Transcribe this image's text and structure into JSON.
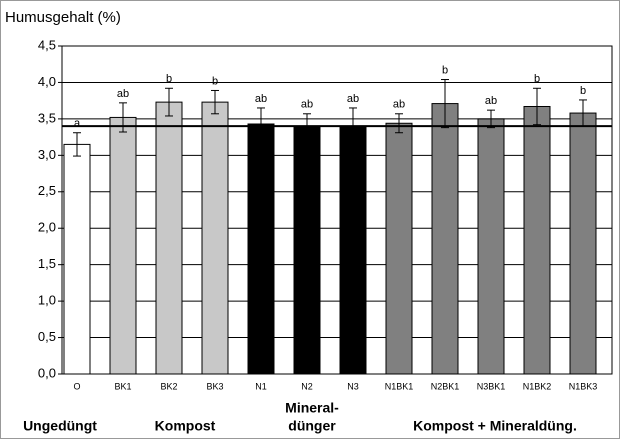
{
  "chart_data": {
    "type": "bar",
    "title": "Humusgehalt (%)",
    "categories": [
      "O",
      "BK1",
      "BK2",
      "BK3",
      "N1",
      "N2",
      "N3",
      "N1BK1",
      "N2BK1",
      "N3BK1",
      "N1BK2",
      "N1BK3"
    ],
    "values": [
      3.15,
      3.52,
      3.73,
      3.73,
      3.43,
      3.4,
      3.4,
      3.44,
      3.71,
      3.5,
      3.67,
      3.58
    ],
    "errors": [
      0.16,
      0.2,
      0.19,
      0.16,
      0.22,
      0.17,
      0.25,
      0.13,
      0.33,
      0.12,
      0.25,
      0.18
    ],
    "value_annotations": [
      "a",
      "ab",
      "b",
      "b",
      "ab",
      "ab",
      "ab",
      "ab",
      "b",
      "ab",
      "b",
      "b"
    ],
    "colors": [
      "#ffffff",
      "#c8c8c8",
      "#c8c8c8",
      "#c8c8c8",
      "#000000",
      "#000000",
      "#000000",
      "#808080",
      "#808080",
      "#808080",
      "#808080",
      "#808080"
    ],
    "groups": [
      [
        "Ungedüngt"
      ],
      [
        "Kompost"
      ],
      [
        "Mineral-",
        "dünger"
      ],
      [
        "Kompost + Mineraldüng."
      ]
    ],
    "reference_line": 3.4,
    "ylim": [
      0,
      4.5
    ],
    "yticks": [
      {
        "value": 0,
        "label": "0,0"
      },
      {
        "value": 0.5,
        "label": "0,5"
      },
      {
        "value": 1,
        "label": "1,0"
      },
      {
        "value": 1.5,
        "label": "1,5"
      },
      {
        "value": 2,
        "label": "2,0"
      },
      {
        "value": 2.5,
        "label": "2,5"
      },
      {
        "value": 3,
        "label": "3,0"
      },
      {
        "value": 3.5,
        "label": "3,5"
      },
      {
        "value": 4,
        "label": "4,0"
      },
      {
        "value": 4.5,
        "label": "4,5"
      }
    ],
    "grid": true
  }
}
